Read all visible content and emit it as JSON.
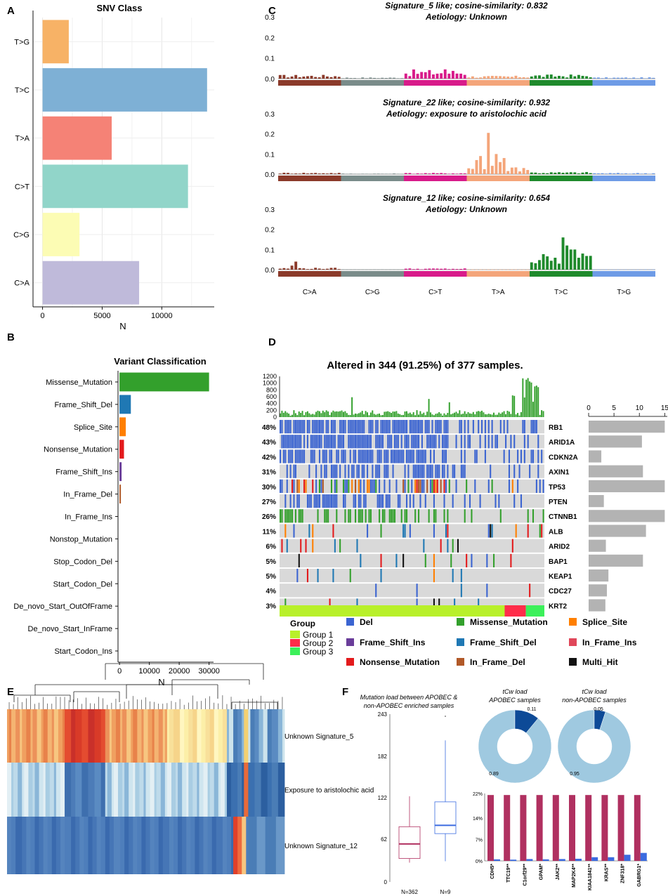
{
  "panel_letters": [
    "A",
    "B",
    "C",
    "D",
    "E",
    "F"
  ],
  "colors": {
    "snv": {
      "T>G": "#F7B266",
      "T>C": "#7EB0D5",
      "T>A": "#F58276",
      "C>T": "#91D5C9",
      "C>G": "#FCFCB4",
      "C>A": "#BFBADA"
    },
    "sig_bands": [
      "#8B3A2A",
      "#7A8C8A",
      "#D81B8A",
      "#F4A57A",
      "#1F8A2C",
      "#6E9BE6"
    ],
    "variants": {
      "Missense_Mutation": "#33A02C",
      "Frame_Shift_Del": "#1F78B4",
      "Splice_Site": "#FF7F00",
      "Nonsense_Mutation": "#E31A1C",
      "Frame_Shift_Ins": "#6A3D9A",
      "In_Frame_Del": "#B15928",
      "In_Frame_Ins": "#E0475A",
      "Multi_Hit": "#111111",
      "Del": "#3B64D1"
    },
    "groups": {
      "Group 1": "#B8F02A",
      "Group 2": "#FF2D4A",
      "Group 3": "#3CF05A"
    },
    "apobec": "#B03060",
    "non_apobec": "#3B6BE0",
    "donut_light": "#9FC9E0",
    "donut_dark": "#0D4A97"
  },
  "chart_data": [
    {
      "id": "A",
      "type": "bar",
      "orientation": "horizontal",
      "title": "SNV Class",
      "xlabel": "N",
      "ylabel": "",
      "categories": [
        "T>G",
        "T>C",
        "T>A",
        "C>T",
        "C>G",
        "C>A"
      ],
      "values": [
        2200,
        13800,
        5800,
        12200,
        3100,
        8100
      ],
      "xlim": [
        -800,
        14400
      ],
      "xticks": [
        0,
        5000,
        10000
      ]
    },
    {
      "id": "B",
      "type": "bar",
      "orientation": "horizontal",
      "title": "Variant Classification",
      "xlabel": "N",
      "categories": [
        "Missense_Mutation",
        "Frame_Shift_Del",
        "Splice_Site",
        "Nonsense_Mutation",
        "Frame_Shift_Ins",
        "In_Frame_Del",
        "In_Frame_Ins",
        "Nonstop_Mutation",
        "Stop_Codon_Del",
        "Start_Codon_Del",
        "De_novo_Start_OutOfFrame",
        "De_novo_Start_InFrame",
        "Start_Codon_Ins"
      ],
      "values": [
        30000,
        3800,
        2100,
        1500,
        700,
        300,
        0,
        0,
        0,
        0,
        0,
        0,
        0
      ],
      "xlim": [
        -500,
        31500
      ],
      "xticks": [
        0,
        10000,
        20000,
        30000
      ]
    },
    {
      "id": "C",
      "type": "bar",
      "subplots": [
        {
          "title": "Signature_5 like; cosine-similarity: 0.832",
          "subtitle": "Aetiology: Unknown",
          "ylim": [
            0,
            0.3
          ],
          "yticks": [
            "0.3",
            "0.2",
            "0.1",
            "0.0"
          ],
          "group_levels": [
            0.012,
            0.004,
            0.028,
            0.009,
            0.013,
            0.004
          ],
          "peaks": [
            [
              42,
              0.045
            ]
          ]
        },
        {
          "title": "Signature_22 like; cosine-similarity: 0.932",
          "subtitle": "Aetiology: exposure to aristolochic acid",
          "ylim": [
            0,
            0.3
          ],
          "yticks": [
            "0.3",
            "0.2",
            "0.1",
            "0.0"
          ],
          "group_levels": [
            0.005,
            0.002,
            0.004,
            0.03,
            0.007,
            0.004
          ],
          "peaks": [
            [
              53,
              0.205
            ],
            [
              50,
              0.07
            ],
            [
              51,
              0.09
            ],
            [
              55,
              0.1
            ],
            [
              56,
              0.06
            ],
            [
              57,
              0.08
            ]
          ]
        },
        {
          "title": "Signature_12 like; cosine-similarity: 0.654",
          "subtitle": "Aetiology: Unknown",
          "ylim": [
            0,
            0.3
          ],
          "yticks": [
            "0.3",
            "0.2",
            "0.1",
            "0.0"
          ],
          "group_levels": [
            0.006,
            0.001,
            0.004,
            0.001,
            0.05,
            0.001
          ],
          "peaks": [
            [
              4,
              0.04
            ],
            [
              3,
              0.02
            ],
            [
              72,
              0.16
            ],
            [
              74,
              0.1
            ],
            [
              75,
              0.1
            ],
            [
              77,
              0.08
            ],
            [
              73,
              0.12
            ]
          ]
        }
      ],
      "categories": [
        "C>A",
        "C>G",
        "C>T",
        "T>A",
        "T>C",
        "T>G"
      ]
    },
    {
      "id": "D",
      "type": "heatmap",
      "subtype": "oncoplot",
      "title": "Altered in 344 (91.25%) of 377 samples.",
      "tmb_yticks": [
        "1200",
        "1000",
        "800",
        "600",
        "400",
        "200",
        "0"
      ],
      "genes": [
        "RB1",
        "ARID1A",
        "CDKN2A",
        "AXIN1",
        "TP53",
        "PTEN",
        "CTNNB1",
        "ALB",
        "ARID2",
        "BAP1",
        "KEAP1",
        "CDC27",
        "KRT2"
      ],
      "percent": [
        "48%",
        "43%",
        "42%",
        "31%",
        "30%",
        "27%",
        "26%",
        "11%",
        "6%",
        "5%",
        "5%",
        "4%",
        "3%"
      ],
      "right_bar_values": [
        15,
        10.5,
        2.5,
        10.7,
        15,
        3,
        15,
        11.3,
        3.4,
        10.7,
        3.9,
        3.6,
        3.3
      ],
      "right_xticks": [
        0,
        5,
        10,
        15
      ],
      "legend": {
        "group_title": "Group",
        "groups": [
          "Group 1",
          "Group 2",
          "Group 3"
        ],
        "group_fractions": [
          0.85,
          0.08,
          0.07
        ],
        "items": [
          "Del",
          "Missense_Mutation",
          "Splice_Site",
          "Frame_Shift_Ins",
          "Frame_Shift_Del",
          "In_Frame_Ins",
          "Nonsense_Mutation",
          "In_Frame_Del",
          "Multi_Hit"
        ]
      }
    },
    {
      "id": "E",
      "type": "heatmap",
      "rows": [
        "Unknown Signature_5",
        "Exposure to aristolochic acid",
        "Unknown Signature_12"
      ]
    },
    {
      "id": "F",
      "type": "box",
      "title": "Mutation load between APOBEC & non-APOBEC enriched samples",
      "yticks": [
        0,
        62,
        122,
        182,
        243
      ],
      "groups": [
        {
          "label": "N=362",
          "min": 28,
          "q1": 34,
          "median": 55,
          "q3": 80,
          "max": 124
        },
        {
          "label": "N=9",
          "min": 30,
          "q1": 70,
          "median": 82,
          "q3": 116,
          "max": 205,
          "outlier": 243
        }
      ]
    },
    {
      "id": "F2",
      "type": "pie",
      "charts": [
        {
          "title": "tCw load",
          "subtitle": "APOBEC samples",
          "values": [
            0.89,
            0.11
          ],
          "labels": [
            "0.89",
            "0.11"
          ]
        },
        {
          "title": "tCw load",
          "subtitle": "non-APOBEC samples",
          "values": [
            0.95,
            0.05
          ],
          "labels": [
            "0.95",
            "0.05"
          ]
        }
      ]
    },
    {
      "id": "F3",
      "type": "bar",
      "categories": [
        "CDH5*",
        "TTC19**",
        "C1orf29**",
        "GPAM*",
        "JAK2**",
        "MAP2K4**",
        "KIAA1841**",
        "KRAS**",
        "ZNF318*",
        "GABRG1*"
      ],
      "series": [
        {
          "name": "APOBEC",
          "values": [
            21.5,
            21.5,
            21.5,
            21.5,
            21.5,
            21.5,
            21.5,
            21.5,
            21.5,
            21.5
          ]
        },
        {
          "name": "non-APOBEC",
          "values": [
            0.5,
            0.4,
            0.6,
            0.5,
            0.6,
            0.7,
            1.2,
            1.2,
            2.0,
            2.6
          ]
        }
      ],
      "yticks": [
        "22%",
        "14%",
        "7%",
        "0%"
      ],
      "ylim": [
        0,
        22
      ]
    }
  ]
}
